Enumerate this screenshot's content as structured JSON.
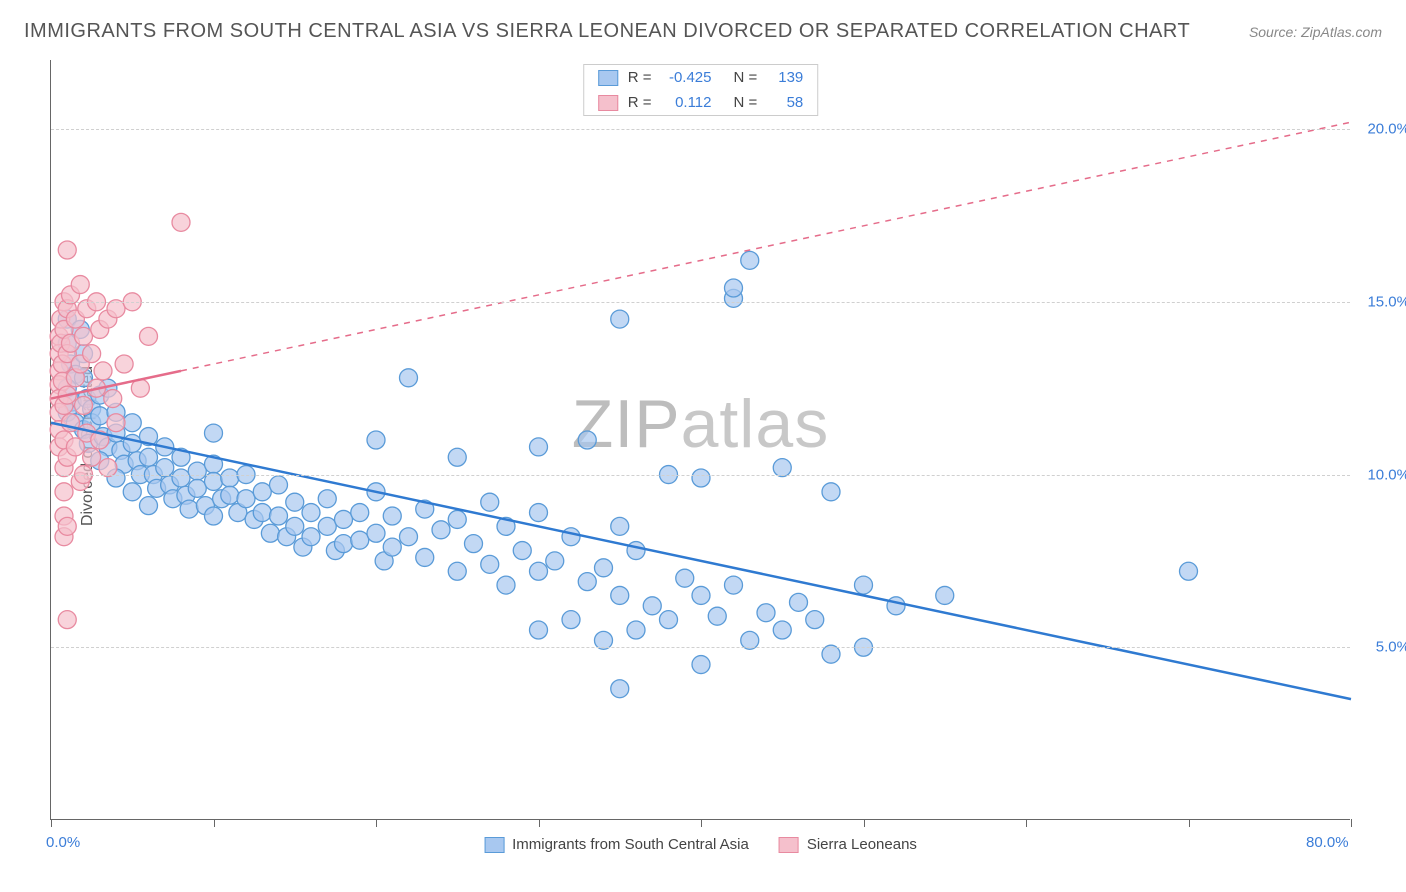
{
  "title": "IMMIGRANTS FROM SOUTH CENTRAL ASIA VS SIERRA LEONEAN DIVORCED OR SEPARATED CORRELATION CHART",
  "source": "Source: ZipAtlas.com",
  "y_axis_label": "Divorced or Separated",
  "watermark_bold": "ZIP",
  "watermark_thin": "atlas",
  "chart": {
    "type": "scatter",
    "xlim": [
      0,
      80
    ],
    "ylim": [
      0,
      22
    ],
    "x_ticks": [
      0,
      10,
      20,
      30,
      40,
      50,
      60,
      70,
      80
    ],
    "x_tick_labels_shown": {
      "0": "0.0%",
      "80": "80.0%"
    },
    "y_ticks": [
      5,
      10,
      15,
      20
    ],
    "y_tick_labels": {
      "5": "5.0%",
      "10": "10.0%",
      "15": "15.0%",
      "20": "20.0%"
    },
    "background_color": "#ffffff",
    "grid_color": "#d0d0d0",
    "axis_color": "#666666",
    "tick_label_color": "#3b7dd8",
    "label_fontsize": 16,
    "tick_fontsize": 15,
    "series": [
      {
        "name": "Immigrants from South Central Asia",
        "marker_fill": "#a8c8f0",
        "marker_stroke": "#5a9bd8",
        "marker_radius": 9,
        "marker_opacity": 0.7,
        "trend_color": "#2f7ad1",
        "trend_width": 2.5,
        "trend_dash": "none",
        "trend": {
          "x1": 0,
          "y1": 11.5,
          "x2": 80,
          "y2": 3.5
        },
        "R": "-0.425",
        "N": "139",
        "points": [
          [
            1,
            14.5
          ],
          [
            1,
            13.8
          ],
          [
            1.2,
            13.2
          ],
          [
            1.5,
            12.9
          ],
          [
            1,
            12.5
          ],
          [
            1.3,
            12.1
          ],
          [
            1,
            11.8
          ],
          [
            1.5,
            11.5
          ],
          [
            1.8,
            14.2
          ],
          [
            2,
            13.5
          ],
          [
            2,
            12.8
          ],
          [
            2.2,
            12.2
          ],
          [
            2.5,
            11.9
          ],
          [
            2,
            11.3
          ],
          [
            2.3,
            10.9
          ],
          [
            2.5,
            11.5
          ],
          [
            3,
            12.3
          ],
          [
            3,
            11.7
          ],
          [
            3.2,
            11.1
          ],
          [
            3.5,
            10.8
          ],
          [
            3,
            10.4
          ],
          [
            3.5,
            12.5
          ],
          [
            4,
            11.8
          ],
          [
            4,
            11.2
          ],
          [
            4.3,
            10.7
          ],
          [
            4.5,
            10.3
          ],
          [
            4,
            9.9
          ],
          [
            5,
            11.5
          ],
          [
            5,
            10.9
          ],
          [
            5.3,
            10.4
          ],
          [
            5.5,
            10.0
          ],
          [
            5,
            9.5
          ],
          [
            6,
            11.1
          ],
          [
            6,
            10.5
          ],
          [
            6.3,
            10.0
          ],
          [
            6.5,
            9.6
          ],
          [
            6,
            9.1
          ],
          [
            7,
            10.8
          ],
          [
            7,
            10.2
          ],
          [
            7.3,
            9.7
          ],
          [
            7.5,
            9.3
          ],
          [
            8,
            10.5
          ],
          [
            8,
            9.9
          ],
          [
            8.3,
            9.4
          ],
          [
            8.5,
            9.0
          ],
          [
            9,
            10.1
          ],
          [
            9,
            9.6
          ],
          [
            9.5,
            9.1
          ],
          [
            10,
            11.2
          ],
          [
            10,
            10.3
          ],
          [
            10,
            9.8
          ],
          [
            10.5,
            9.3
          ],
          [
            10,
            8.8
          ],
          [
            11,
            9.9
          ],
          [
            11,
            9.4
          ],
          [
            11.5,
            8.9
          ],
          [
            12,
            10.0
          ],
          [
            12,
            9.3
          ],
          [
            12.5,
            8.7
          ],
          [
            13,
            9.5
          ],
          [
            13,
            8.9
          ],
          [
            13.5,
            8.3
          ],
          [
            14,
            9.7
          ],
          [
            14,
            8.8
          ],
          [
            14.5,
            8.2
          ],
          [
            15,
            9.2
          ],
          [
            15,
            8.5
          ],
          [
            15.5,
            7.9
          ],
          [
            16,
            8.9
          ],
          [
            16,
            8.2
          ],
          [
            17,
            9.3
          ],
          [
            17,
            8.5
          ],
          [
            17.5,
            7.8
          ],
          [
            18,
            8.7
          ],
          [
            18,
            8.0
          ],
          [
            19,
            8.9
          ],
          [
            19,
            8.1
          ],
          [
            20,
            11.0
          ],
          [
            20,
            9.5
          ],
          [
            20,
            8.3
          ],
          [
            20.5,
            7.5
          ],
          [
            21,
            8.8
          ],
          [
            21,
            7.9
          ],
          [
            22,
            12.8
          ],
          [
            22,
            8.2
          ],
          [
            23,
            9.0
          ],
          [
            23,
            7.6
          ],
          [
            24,
            8.4
          ],
          [
            25,
            10.5
          ],
          [
            25,
            8.7
          ],
          [
            25,
            7.2
          ],
          [
            26,
            8.0
          ],
          [
            27,
            9.2
          ],
          [
            27,
            7.4
          ],
          [
            28,
            8.5
          ],
          [
            28,
            6.8
          ],
          [
            29,
            7.8
          ],
          [
            30,
            10.8
          ],
          [
            30,
            8.9
          ],
          [
            30,
            7.2
          ],
          [
            30,
            5.5
          ],
          [
            31,
            7.5
          ],
          [
            32,
            8.2
          ],
          [
            32,
            5.8
          ],
          [
            33,
            11.0
          ],
          [
            33,
            6.9
          ],
          [
            34,
            7.3
          ],
          [
            34,
            5.2
          ],
          [
            35,
            14.5
          ],
          [
            35,
            8.5
          ],
          [
            35,
            6.5
          ],
          [
            35,
            3.8
          ],
          [
            36,
            7.8
          ],
          [
            36,
            5.5
          ],
          [
            37,
            6.2
          ],
          [
            38,
            10.0
          ],
          [
            38,
            5.8
          ],
          [
            39,
            7.0
          ],
          [
            40,
            9.9
          ],
          [
            40,
            6.5
          ],
          [
            40,
            4.5
          ],
          [
            41,
            5.9
          ],
          [
            42,
            15.1
          ],
          [
            42,
            15.4
          ],
          [
            42,
            6.8
          ],
          [
            43,
            16.2
          ],
          [
            43,
            5.2
          ],
          [
            44,
            6.0
          ],
          [
            45,
            10.2
          ],
          [
            45,
            5.5
          ],
          [
            46,
            6.3
          ],
          [
            47,
            5.8
          ],
          [
            48,
            9.5
          ],
          [
            48,
            4.8
          ],
          [
            50,
            6.8
          ],
          [
            50,
            5.0
          ],
          [
            52,
            6.2
          ],
          [
            55,
            6.5
          ],
          [
            70,
            7.2
          ]
        ]
      },
      {
        "name": "Sierra Leoneans",
        "marker_fill": "#f5c0cc",
        "marker_stroke": "#e88aa0",
        "marker_radius": 9,
        "marker_opacity": 0.7,
        "trend_color": "#e56c8a",
        "trend_width": 2.5,
        "trend_solid": {
          "x1": 0,
          "y1": 12.2,
          "x2": 8,
          "y2": 13.0
        },
        "trend_dashed": {
          "x1": 8,
          "y1": 13.0,
          "x2": 80,
          "y2": 20.2
        },
        "R": "0.112",
        "N": "58",
        "points": [
          [
            0.5,
            14.0
          ],
          [
            0.5,
            13.5
          ],
          [
            0.5,
            13.0
          ],
          [
            0.5,
            12.6
          ],
          [
            0.5,
            12.2
          ],
          [
            0.5,
            11.8
          ],
          [
            0.5,
            11.3
          ],
          [
            0.5,
            10.8
          ],
          [
            0.6,
            14.5
          ],
          [
            0.6,
            13.8
          ],
          [
            0.7,
            13.2
          ],
          [
            0.7,
            12.7
          ],
          [
            0.8,
            15.0
          ],
          [
            0.8,
            14.2
          ],
          [
            0.8,
            12.0
          ],
          [
            0.8,
            11.0
          ],
          [
            0.8,
            10.2
          ],
          [
            0.8,
            9.5
          ],
          [
            0.8,
            8.8
          ],
          [
            0.8,
            8.2
          ],
          [
            1.0,
            16.5
          ],
          [
            1.0,
            14.8
          ],
          [
            1.0,
            13.5
          ],
          [
            1.0,
            12.3
          ],
          [
            1.0,
            10.5
          ],
          [
            1.0,
            8.5
          ],
          [
            1.0,
            5.8
          ],
          [
            1.2,
            15.2
          ],
          [
            1.2,
            13.8
          ],
          [
            1.2,
            11.5
          ],
          [
            1.5,
            14.5
          ],
          [
            1.5,
            12.8
          ],
          [
            1.5,
            10.8
          ],
          [
            1.8,
            15.5
          ],
          [
            1.8,
            13.2
          ],
          [
            1.8,
            9.8
          ],
          [
            2.0,
            14.0
          ],
          [
            2.0,
            12.0
          ],
          [
            2.0,
            10.0
          ],
          [
            2.2,
            14.8
          ],
          [
            2.2,
            11.2
          ],
          [
            2.5,
            13.5
          ],
          [
            2.5,
            10.5
          ],
          [
            2.8,
            15.0
          ],
          [
            2.8,
            12.5
          ],
          [
            3.0,
            14.2
          ],
          [
            3.0,
            11.0
          ],
          [
            3.2,
            13.0
          ],
          [
            3.5,
            14.5
          ],
          [
            3.5,
            10.2
          ],
          [
            3.8,
            12.2
          ],
          [
            4.0,
            14.8
          ],
          [
            4.0,
            11.5
          ],
          [
            4.5,
            13.2
          ],
          [
            5.0,
            15.0
          ],
          [
            5.5,
            12.5
          ],
          [
            6.0,
            14.0
          ],
          [
            8.0,
            17.3
          ]
        ]
      }
    ],
    "legend_top": [
      {
        "swatch_fill": "#a8c8f0",
        "swatch_stroke": "#5a9bd8",
        "r_label": "R =",
        "r_val": "-0.425",
        "n_label": "N =",
        "n_val": "139"
      },
      {
        "swatch_fill": "#f5c0cc",
        "swatch_stroke": "#e88aa0",
        "r_label": "R =",
        "r_val": "0.112",
        "n_label": "N =",
        "n_val": "58"
      }
    ],
    "legend_bottom": [
      {
        "swatch_fill": "#a8c8f0",
        "swatch_stroke": "#5a9bd8",
        "label": "Immigrants from South Central Asia"
      },
      {
        "swatch_fill": "#f5c0cc",
        "swatch_stroke": "#e88aa0",
        "label": "Sierra Leoneans"
      }
    ]
  }
}
